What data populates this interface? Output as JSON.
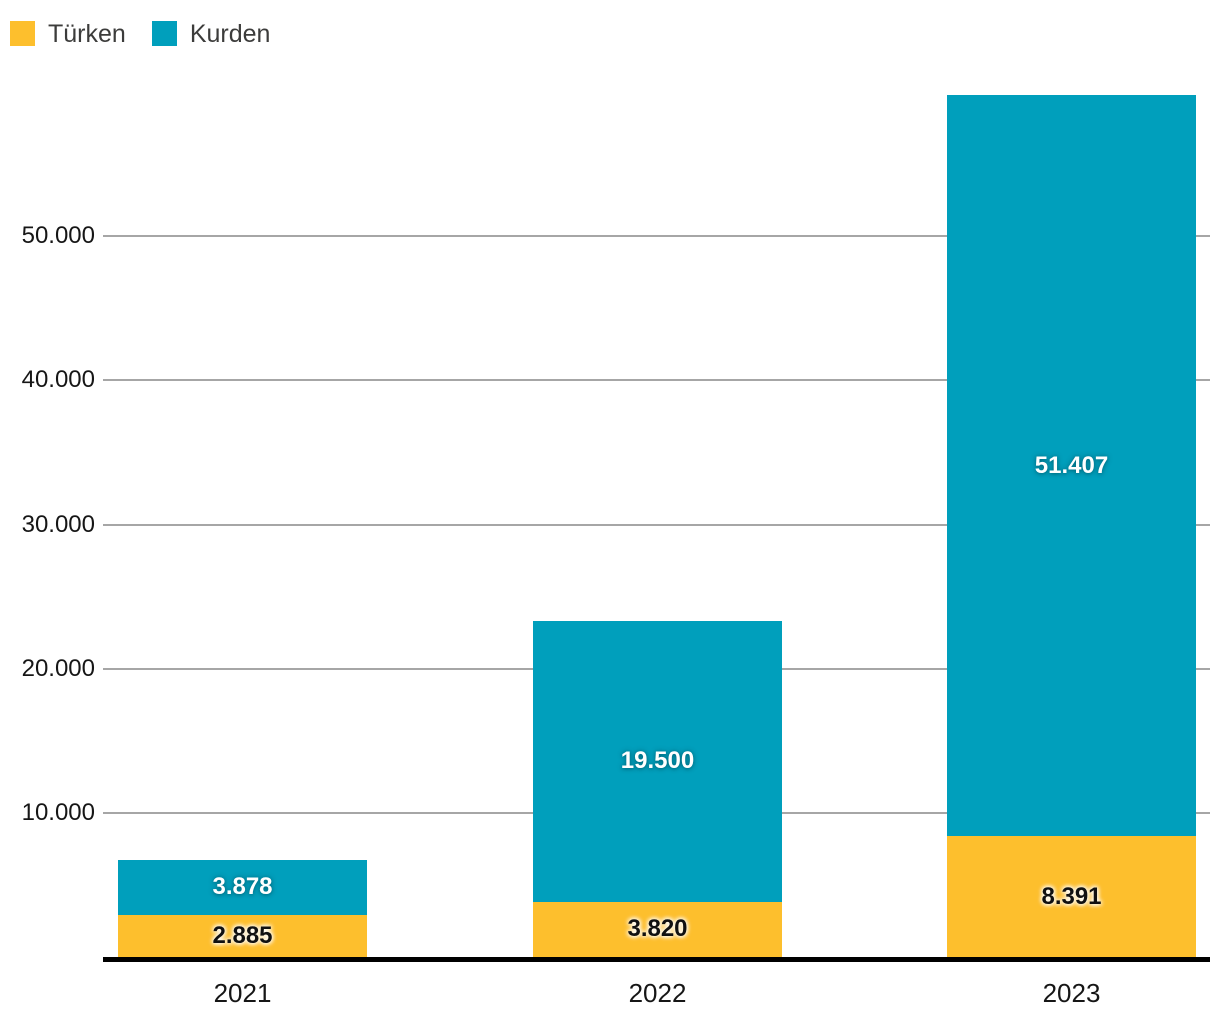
{
  "chart_data": {
    "type": "bar",
    "stacked": true,
    "title": "",
    "xlabel": "",
    "ylabel": "",
    "categories": [
      "2021",
      "2022",
      "2023"
    ],
    "series": [
      {
        "name": "Türken",
        "color": "#FDBF2D",
        "label_color": "#111111",
        "label_style": "dark",
        "values": [
          2885,
          3820,
          8391
        ],
        "value_labels": [
          "2.885",
          "3.820",
          "8.391"
        ]
      },
      {
        "name": "Kurden",
        "color": "#009FBC",
        "label_color": "#FFFFFF",
        "label_style": "light",
        "values": [
          3878,
          19500,
          51407
        ],
        "value_labels": [
          "3.878",
          "19.500",
          "51.407"
        ]
      }
    ],
    "totals": [
      6763,
      23320,
      59798
    ],
    "yticks": [
      {
        "value": 10000,
        "label": "10.000"
      },
      {
        "value": 20000,
        "label": "20.000"
      },
      {
        "value": 30000,
        "label": "30.000"
      },
      {
        "value": 40000,
        "label": "40.000"
      },
      {
        "value": 50000,
        "label": "50.000"
      }
    ],
    "ylim": [
      0,
      59798
    ],
    "grid": true,
    "legend_position": "top-left",
    "gridline_color": "#A6A6A6",
    "axis_color": "#000000",
    "tick_text_color": "#161616",
    "legend_text_color": "#3C3C3B"
  }
}
